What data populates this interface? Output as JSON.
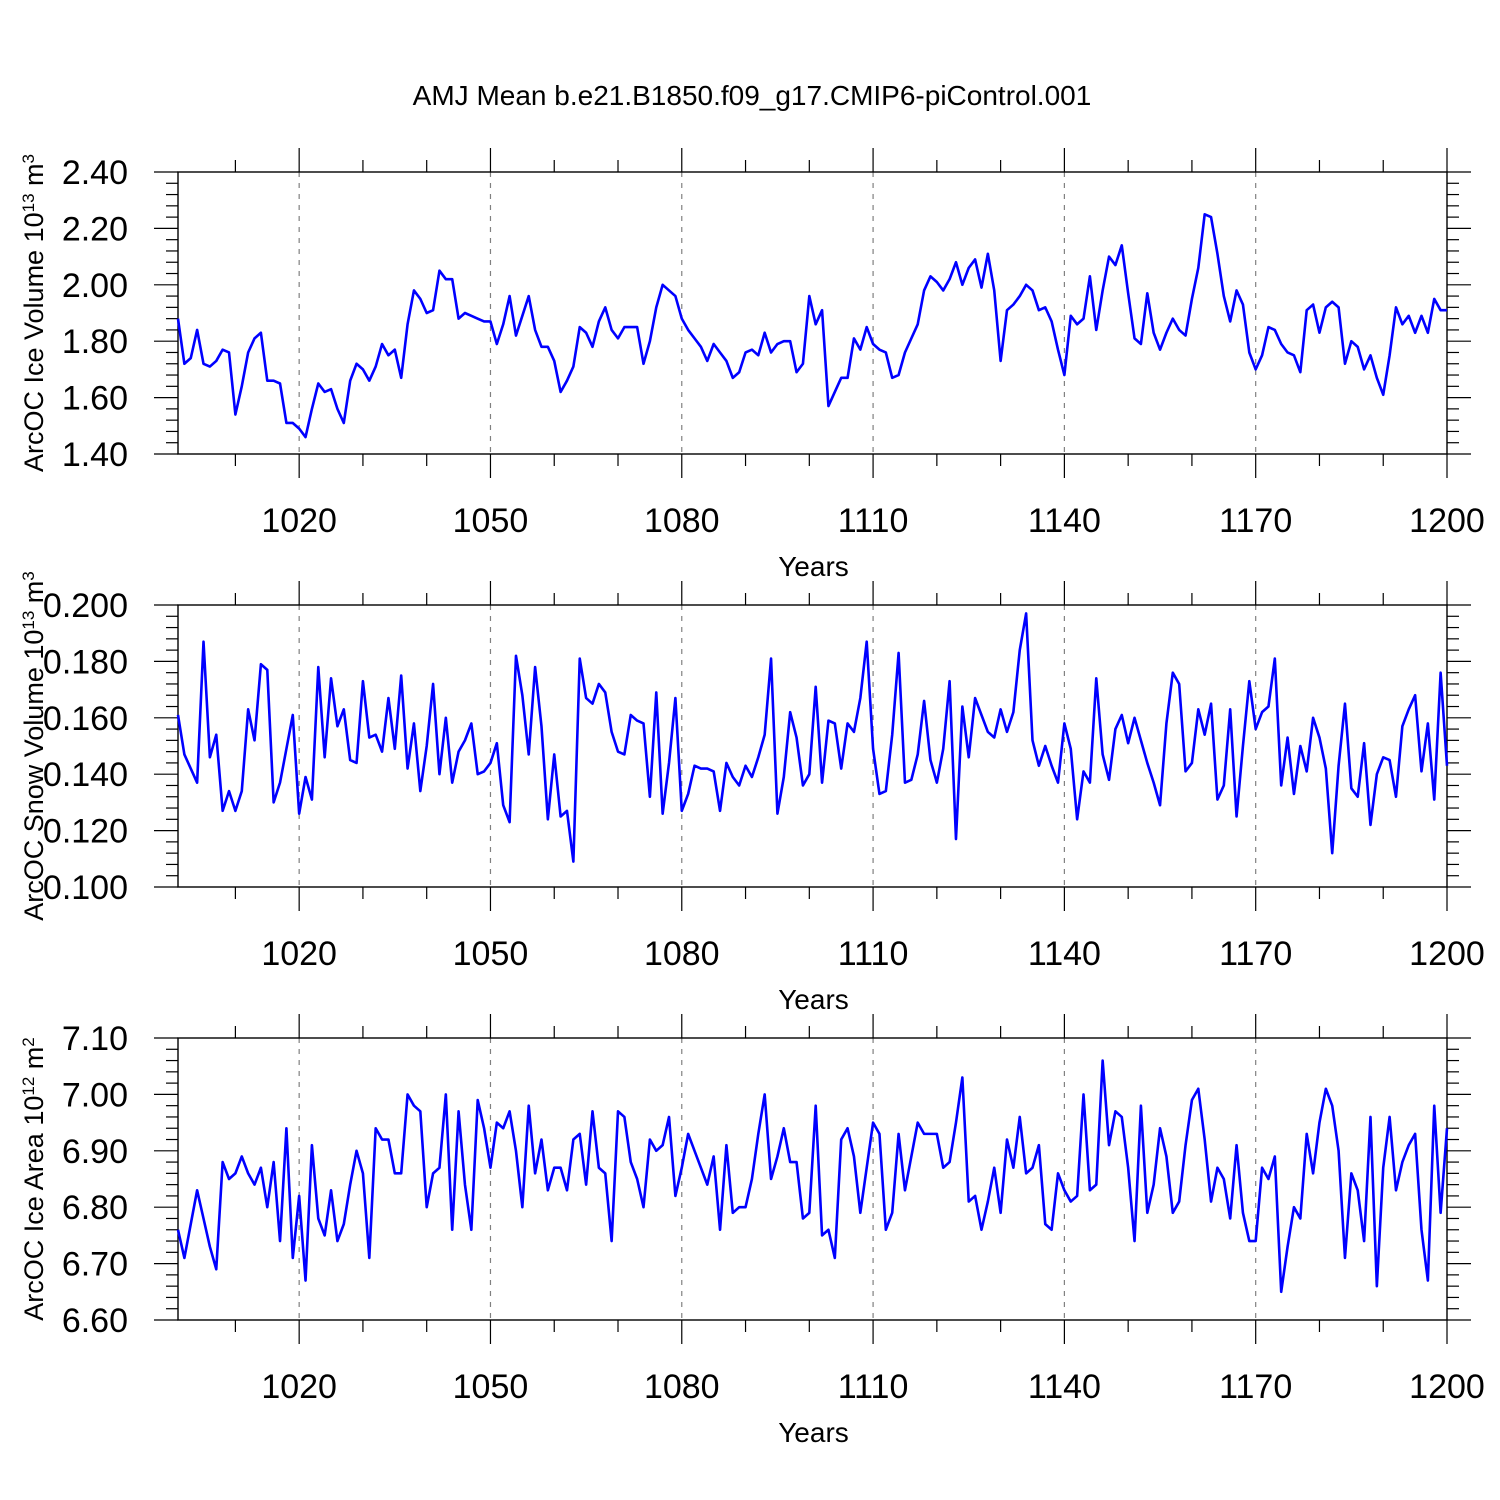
{
  "title": "AMJ Mean b.e21.B1850.f09_g17.CMIP6-piControl.001",
  "colors": {
    "series": "#0000ff",
    "axis": "#000000",
    "grid": "#808080",
    "background": "#ffffff"
  },
  "chart_data": [
    {
      "type": "line",
      "ylabel_main": "ArcOC Ice Volume 10",
      "ylabel_exp": "13",
      "ylabel_unit": " m",
      "ylabel_unit_exp": "3",
      "xlabel": "Years",
      "xlim": [
        1001,
        1200
      ],
      "ylim": [
        1.4,
        2.4
      ],
      "x_ticks": [
        1020,
        1050,
        1080,
        1110,
        1140,
        1170,
        1200
      ],
      "x_tick_labels": [
        "1020",
        "1050",
        "1080",
        "1110",
        "1140",
        "1170",
        "1200"
      ],
      "y_ticks": [
        1.4,
        1.6,
        1.8,
        2.0,
        2.2,
        2.4
      ],
      "y_tick_labels": [
        "1.40",
        "1.60",
        "1.80",
        "2.00",
        "2.20",
        "2.40"
      ],
      "grid": "vertical dashed at major x ticks",
      "x_start": 1001,
      "series": [
        {
          "name": "ArcOC Ice Volume",
          "values": [
            1.88,
            1.72,
            1.74,
            1.84,
            1.72,
            1.71,
            1.73,
            1.77,
            1.76,
            1.54,
            1.64,
            1.76,
            1.81,
            1.83,
            1.66,
            1.66,
            1.65,
            1.51,
            1.51,
            1.49,
            1.46,
            1.56,
            1.65,
            1.62,
            1.63,
            1.56,
            1.51,
            1.66,
            1.72,
            1.7,
            1.66,
            1.71,
            1.79,
            1.75,
            1.77,
            1.67,
            1.86,
            1.98,
            1.95,
            1.9,
            1.91,
            2.05,
            2.02,
            2.02,
            1.88,
            1.9,
            1.89,
            1.88,
            1.87,
            1.87,
            1.79,
            1.86,
            1.96,
            1.82,
            1.89,
            1.96,
            1.84,
            1.78,
            1.78,
            1.73,
            1.62,
            1.66,
            1.71,
            1.85,
            1.83,
            1.78,
            1.87,
            1.92,
            1.84,
            1.81,
            1.85,
            1.85,
            1.85,
            1.72,
            1.8,
            1.92,
            2.0,
            1.98,
            1.96,
            1.88,
            1.84,
            1.81,
            1.78,
            1.73,
            1.79,
            1.76,
            1.73,
            1.67,
            1.69,
            1.76,
            1.77,
            1.75,
            1.83,
            1.76,
            1.79,
            1.8,
            1.8,
            1.69,
            1.72,
            1.96,
            1.86,
            1.91,
            1.57,
            1.62,
            1.67,
            1.67,
            1.81,
            1.77,
            1.85,
            1.79,
            1.77,
            1.76,
            1.67,
            1.68,
            1.76,
            1.81,
            1.86,
            1.98,
            2.03,
            2.01,
            1.98,
            2.02,
            2.08,
            2.0,
            2.06,
            2.09,
            1.99,
            2.11,
            1.98,
            1.73,
            1.91,
            1.93,
            1.96,
            2.0,
            1.98,
            1.91,
            1.92,
            1.87,
            1.77,
            1.68,
            1.89,
            1.86,
            1.88,
            2.03,
            1.84,
            1.98,
            2.1,
            2.07,
            2.14,
            1.97,
            1.81,
            1.79,
            1.97,
            1.83,
            1.77,
            1.83,
            1.88,
            1.84,
            1.82,
            1.95,
            2.06,
            2.25,
            2.24,
            2.11,
            1.96,
            1.87,
            1.98,
            1.93,
            1.76,
            1.7,
            1.75,
            1.85,
            1.84,
            1.79,
            1.76,
            1.75,
            1.69,
            1.91,
            1.93,
            1.83,
            1.92,
            1.94,
            1.92,
            1.72,
            1.8,
            1.78,
            1.7,
            1.75,
            1.67,
            1.61,
            1.75,
            1.92,
            1.86,
            1.89,
            1.83,
            1.89,
            1.83,
            1.95,
            1.91,
            1.91
          ]
        }
      ]
    },
    {
      "type": "line",
      "ylabel_main": "ArcOC Snow Volume 10",
      "ylabel_exp": "13",
      "ylabel_unit": " m",
      "ylabel_unit_exp": "3",
      "xlabel": "Years",
      "xlim": [
        1001,
        1200
      ],
      "ylim": [
        0.1,
        0.2
      ],
      "x_ticks": [
        1020,
        1050,
        1080,
        1110,
        1140,
        1170,
        1200
      ],
      "x_tick_labels": [
        "1020",
        "1050",
        "1080",
        "1110",
        "1140",
        "1170",
        "1200"
      ],
      "y_ticks": [
        0.1,
        0.12,
        0.14,
        0.16,
        0.18,
        0.2
      ],
      "y_tick_labels": [
        "0.100",
        "0.120",
        "0.140",
        "0.160",
        "0.180",
        "0.200"
      ],
      "grid": "vertical dashed at major x ticks",
      "x_start": 1001,
      "series": [
        {
          "name": "ArcOC Snow Volume",
          "values": [
            0.161,
            0.147,
            0.142,
            0.137,
            0.187,
            0.146,
            0.154,
            0.127,
            0.134,
            0.127,
            0.134,
            0.163,
            0.152,
            0.179,
            0.177,
            0.13,
            0.137,
            0.149,
            0.161,
            0.126,
            0.139,
            0.131,
            0.178,
            0.146,
            0.174,
            0.157,
            0.163,
            0.145,
            0.144,
            0.173,
            0.153,
            0.154,
            0.148,
            0.167,
            0.149,
            0.175,
            0.142,
            0.158,
            0.134,
            0.15,
            0.172,
            0.14,
            0.16,
            0.137,
            0.148,
            0.152,
            0.158,
            0.14,
            0.141,
            0.144,
            0.151,
            0.129,
            0.123,
            0.182,
            0.168,
            0.147,
            0.178,
            0.157,
            0.124,
            0.147,
            0.125,
            0.127,
            0.109,
            0.181,
            0.167,
            0.165,
            0.172,
            0.169,
            0.155,
            0.148,
            0.147,
            0.161,
            0.159,
            0.158,
            0.132,
            0.169,
            0.126,
            0.144,
            0.167,
            0.127,
            0.133,
            0.143,
            0.142,
            0.142,
            0.141,
            0.127,
            0.144,
            0.139,
            0.136,
            0.143,
            0.139,
            0.146,
            0.154,
            0.181,
            0.126,
            0.139,
            0.162,
            0.153,
            0.136,
            0.14,
            0.171,
            0.137,
            0.159,
            0.158,
            0.142,
            0.158,
            0.155,
            0.167,
            0.187,
            0.149,
            0.133,
            0.134,
            0.154,
            0.183,
            0.137,
            0.138,
            0.147,
            0.166,
            0.145,
            0.137,
            0.149,
            0.173,
            0.117,
            0.164,
            0.146,
            0.167,
            0.161,
            0.155,
            0.153,
            0.163,
            0.155,
            0.162,
            0.184,
            0.197,
            0.152,
            0.143,
            0.15,
            0.143,
            0.137,
            0.158,
            0.149,
            0.124,
            0.141,
            0.137,
            0.174,
            0.147,
            0.138,
            0.156,
            0.161,
            0.151,
            0.16,
            0.152,
            0.144,
            0.137,
            0.129,
            0.158,
            0.176,
            0.172,
            0.141,
            0.144,
            0.163,
            0.154,
            0.165,
            0.131,
            0.136,
            0.163,
            0.125,
            0.15,
            0.173,
            0.156,
            0.162,
            0.164,
            0.181,
            0.136,
            0.153,
            0.133,
            0.15,
            0.141,
            0.16,
            0.153,
            0.142,
            0.112,
            0.143,
            0.165,
            0.135,
            0.132,
            0.151,
            0.122,
            0.14,
            0.146,
            0.145,
            0.132,
            0.157,
            0.163,
            0.168,
            0.141,
            0.158,
            0.131,
            0.176,
            0.143
          ]
        }
      ]
    },
    {
      "type": "line",
      "ylabel_main": "ArcOC Ice Area 10",
      "ylabel_exp": "12",
      "ylabel_unit": " m",
      "ylabel_unit_exp": "2",
      "xlabel": "Years",
      "xlim": [
        1001,
        1200
      ],
      "ylim": [
        6.6,
        7.1
      ],
      "x_ticks": [
        1020,
        1050,
        1080,
        1110,
        1140,
        1170,
        1200
      ],
      "x_tick_labels": [
        "1020",
        "1050",
        "1080",
        "1110",
        "1140",
        "1170",
        "1200"
      ],
      "y_ticks": [
        6.6,
        6.7,
        6.8,
        6.9,
        7.0,
        7.1
      ],
      "y_tick_labels": [
        "6.60",
        "6.70",
        "6.80",
        "6.90",
        "7.00",
        "7.10"
      ],
      "grid": "vertical dashed at major x ticks",
      "x_start": 1001,
      "series": [
        {
          "name": "ArcOC Ice Area",
          "values": [
            6.76,
            6.71,
            6.77,
            6.83,
            6.78,
            6.73,
            6.69,
            6.88,
            6.85,
            6.86,
            6.89,
            6.86,
            6.84,
            6.87,
            6.8,
            6.88,
            6.74,
            6.94,
            6.71,
            6.82,
            6.67,
            6.91,
            6.78,
            6.75,
            6.83,
            6.74,
            6.77,
            6.84,
            6.9,
            6.86,
            6.71,
            6.94,
            6.92,
            6.92,
            6.86,
            6.86,
            7.0,
            6.98,
            6.97,
            6.8,
            6.86,
            6.87,
            7.0,
            6.76,
            6.97,
            6.84,
            6.76,
            6.99,
            6.94,
            6.87,
            6.95,
            6.94,
            6.97,
            6.9,
            6.8,
            6.98,
            6.86,
            6.92,
            6.83,
            6.87,
            6.87,
            6.83,
            6.92,
            6.93,
            6.84,
            6.97,
            6.87,
            6.86,
            6.74,
            6.97,
            6.96,
            6.88,
            6.85,
            6.8,
            6.92,
            6.9,
            6.91,
            6.96,
            6.82,
            6.87,
            6.93,
            6.9,
            6.87,
            6.84,
            6.89,
            6.76,
            6.91,
            6.79,
            6.8,
            6.8,
            6.85,
            6.93,
            7.0,
            6.85,
            6.89,
            6.94,
            6.88,
            6.88,
            6.78,
            6.79,
            6.98,
            6.75,
            6.76,
            6.71,
            6.92,
            6.94,
            6.89,
            6.79,
            6.87,
            6.95,
            6.93,
            6.76,
            6.79,
            6.93,
            6.83,
            6.89,
            6.95,
            6.93,
            6.93,
            6.93,
            6.87,
            6.88,
            6.95,
            7.03,
            6.81,
            6.82,
            6.76,
            6.81,
            6.87,
            6.79,
            6.92,
            6.87,
            6.96,
            6.86,
            6.87,
            6.91,
            6.77,
            6.76,
            6.86,
            6.83,
            6.81,
            6.82,
            7.0,
            6.83,
            6.84,
            7.06,
            6.91,
            6.97,
            6.96,
            6.87,
            6.74,
            6.98,
            6.79,
            6.84,
            6.94,
            6.89,
            6.79,
            6.81,
            6.91,
            6.99,
            7.01,
            6.92,
            6.81,
            6.87,
            6.85,
            6.78,
            6.91,
            6.79,
            6.74,
            6.74,
            6.87,
            6.85,
            6.89,
            6.65,
            6.73,
            6.8,
            6.78,
            6.93,
            6.86,
            6.95,
            7.01,
            6.98,
            6.9,
            6.71,
            6.86,
            6.83,
            6.74,
            6.96,
            6.66,
            6.87,
            6.96,
            6.83,
            6.88,
            6.91,
            6.93,
            6.76,
            6.67,
            6.98,
            6.79,
            6.94
          ]
        }
      ]
    }
  ]
}
